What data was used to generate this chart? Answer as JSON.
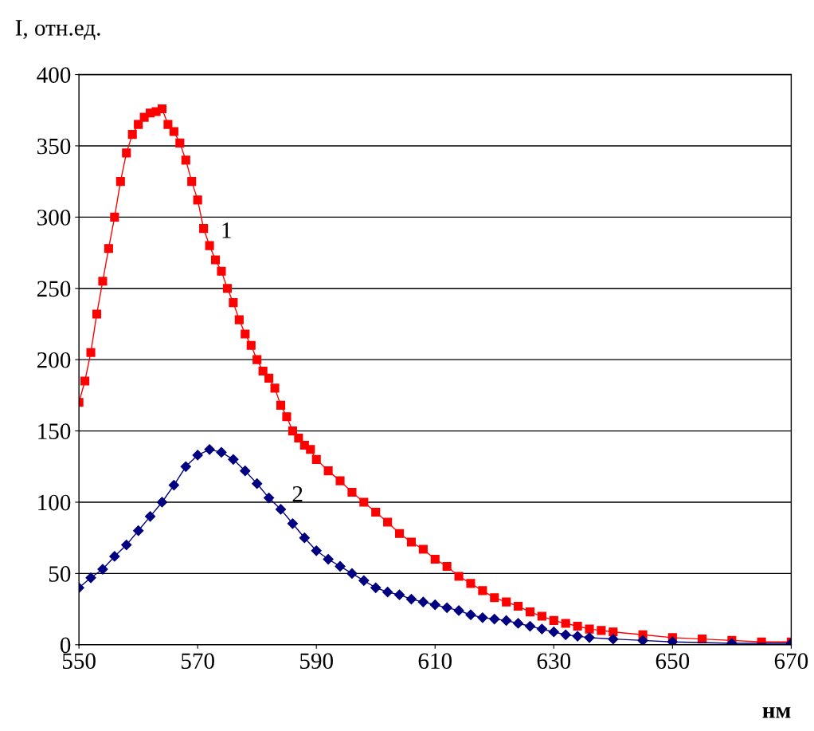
{
  "chart_data": {
    "type": "line",
    "ylabel": "I, отн.ед.",
    "xlabel": "нм",
    "xlim": [
      550,
      670
    ],
    "xticks": [
      550,
      570,
      590,
      610,
      630,
      650,
      670
    ],
    "ylim": [
      0,
      400
    ],
    "yticks": [
      0,
      50,
      100,
      150,
      200,
      250,
      300,
      350,
      400
    ],
    "grid": "y",
    "line_style": "solid",
    "series": [
      {
        "name": "1",
        "color": "#ff0000",
        "marker": "square",
        "x": [
          550,
          551,
          552,
          553,
          554,
          555,
          556,
          557,
          558,
          559,
          560,
          561,
          562,
          563,
          564,
          565,
          566,
          567,
          568,
          569,
          570,
          571,
          572,
          573,
          574,
          575,
          576,
          577,
          578,
          579,
          580,
          581,
          582,
          583,
          584,
          585,
          586,
          587,
          588,
          589,
          590,
          592,
          594,
          596,
          598,
          600,
          602,
          604,
          606,
          608,
          610,
          612,
          614,
          616,
          618,
          620,
          622,
          624,
          626,
          628,
          630,
          632,
          634,
          636,
          638,
          640,
          645,
          650,
          655,
          660,
          665,
          670
        ],
        "values": [
          170,
          185,
          205,
          232,
          255,
          278,
          300,
          325,
          345,
          358,
          365,
          370,
          373,
          374,
          376,
          365,
          360,
          352,
          340,
          325,
          312,
          292,
          280,
          270,
          262,
          250,
          240,
          228,
          218,
          210,
          200,
          192,
          187,
          180,
          168,
          160,
          150,
          145,
          140,
          137,
          130,
          122,
          115,
          107,
          100,
          93,
          86,
          78,
          72,
          67,
          60,
          55,
          48,
          43,
          38,
          33,
          30,
          27,
          23,
          20,
          17,
          15,
          13,
          11,
          10,
          9,
          7,
          5,
          4,
          3,
          2,
          2
        ]
      },
      {
        "name": "2",
        "color": "#000080",
        "marker": "diamond",
        "x": [
          550,
          552,
          554,
          556,
          558,
          560,
          562,
          564,
          566,
          568,
          570,
          572,
          574,
          576,
          578,
          580,
          582,
          584,
          586,
          588,
          590,
          592,
          594,
          596,
          598,
          600,
          602,
          604,
          606,
          608,
          610,
          612,
          614,
          616,
          618,
          620,
          622,
          624,
          626,
          628,
          630,
          632,
          634,
          636,
          640,
          645,
          650,
          660,
          670
        ],
        "values": [
          40,
          47,
          53,
          62,
          70,
          80,
          90,
          100,
          112,
          125,
          133,
          137,
          135,
          130,
          122,
          113,
          103,
          95,
          85,
          75,
          66,
          60,
          55,
          50,
          45,
          40,
          37,
          35,
          32,
          30,
          28,
          26,
          24,
          21,
          19,
          18,
          17,
          15,
          13,
          11,
          9,
          7,
          6,
          5,
          4,
          3,
          2,
          1,
          1
        ]
      }
    ]
  }
}
